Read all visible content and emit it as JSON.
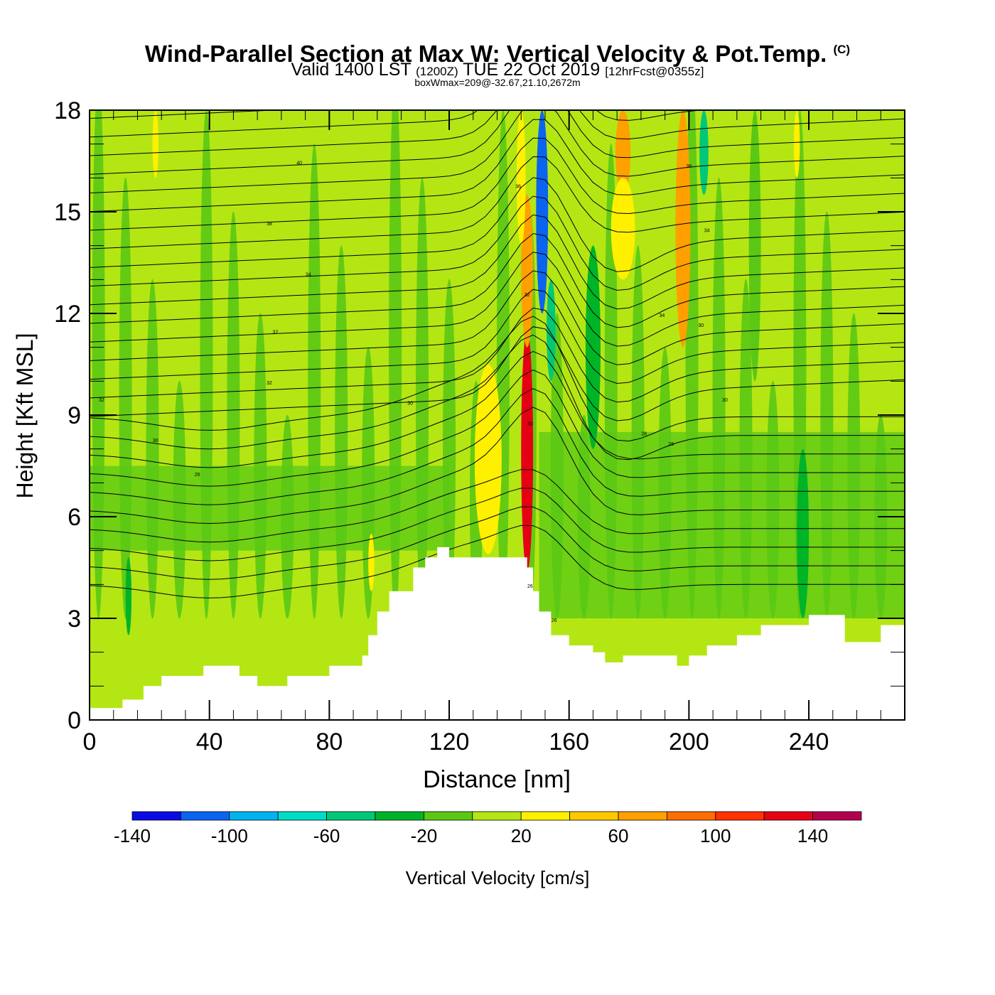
{
  "header": {
    "title": "Wind-Parallel Section at Max W: Vertical Velocity & Pot.Temp.",
    "copyright": "(C)",
    "valid_prefix": "Valid 1400 LST",
    "valid_utc": "(1200Z)",
    "valid_date": "TUE 22 Oct 2019",
    "forecast": "[12hrFcst@0355z]",
    "box_info": "boxWmax=209@-32.67,21.10,2672m"
  },
  "chart_data": {
    "type": "heatmap",
    "description_field": "vertical velocity cross-section with potential temperature contours",
    "xlabel": "Distance [nm]",
    "ylabel": "Height [Kft MSL]",
    "xlim": [
      0,
      272
    ],
    "ylim": [
      0,
      18
    ],
    "xticks": [
      0,
      40,
      80,
      120,
      160,
      200,
      240
    ],
    "yticks": [
      0,
      3,
      6,
      9,
      12,
      15,
      18
    ],
    "terrain": {
      "x": [
        0,
        10,
        11,
        18,
        24,
        38,
        50,
        56,
        66,
        80,
        91,
        93,
        96,
        100,
        104,
        108,
        112,
        116,
        120,
        132,
        142,
        146,
        148,
        150,
        154,
        160,
        168,
        172,
        178,
        190,
        196,
        200,
        206,
        216,
        224,
        232,
        240,
        248,
        252,
        256,
        264,
        272
      ],
      "height": [
        0.35,
        0.35,
        0.6,
        1.0,
        1.3,
        1.6,
        1.3,
        1.0,
        1.3,
        1.6,
        1.9,
        2.5,
        3.2,
        3.8,
        3.8,
        4.5,
        4.8,
        5.1,
        4.8,
        4.8,
        4.8,
        4.5,
        3.8,
        3.2,
        2.5,
        2.2,
        2.0,
        1.7,
        1.9,
        1.9,
        1.6,
        1.9,
        2.2,
        2.5,
        2.8,
        2.8,
        3.1,
        3.1,
        2.3,
        2.3,
        2.8,
        2.8
      ]
    },
    "velocity_features": [
      {
        "x": 133,
        "zmin": 4.9,
        "zmax": 10.5,
        "value": 30,
        "width": 9
      },
      {
        "x": 146,
        "zmin": 4.4,
        "zmax": 11.5,
        "value": 130,
        "width": 4
      },
      {
        "x": 146,
        "zmin": 11.0,
        "zmax": 15.5,
        "value": 60,
        "width": 4
      },
      {
        "x": 144,
        "zmin": 14.0,
        "zmax": 18,
        "value": 30,
        "width": 3
      },
      {
        "x": 151,
        "zmin": 12.0,
        "zmax": 18,
        "value": -120,
        "width": 4
      },
      {
        "x": 154,
        "zmin": 10.0,
        "zmax": 13.0,
        "value": -50,
        "width": 3
      },
      {
        "x": 168,
        "zmin": 8.0,
        "zmax": 14.0,
        "value": -25,
        "width": 5
      },
      {
        "x": 178,
        "zmin": 15.5,
        "zmax": 18,
        "value": 75,
        "width": 5
      },
      {
        "x": 178,
        "zmin": 13.0,
        "zmax": 16.0,
        "value": 30,
        "width": 8
      },
      {
        "x": 198,
        "zmin": 11.0,
        "zmax": 18,
        "value": 60,
        "width": 5
      },
      {
        "x": 205,
        "zmin": 15.5,
        "zmax": 18,
        "value": -60,
        "width": 3
      },
      {
        "x": 222,
        "zmin": 10.0,
        "zmax": 18,
        "value": -20,
        "width": 4
      },
      {
        "x": 238,
        "zmin": 3.0,
        "zmax": 8.0,
        "value": -25,
        "width": 4
      },
      {
        "x": 13,
        "zmin": 2.5,
        "zmax": 4.8,
        "value": -25,
        "width": 2
      },
      {
        "x": 94,
        "zmin": 3.8,
        "zmax": 5.5,
        "value": 35,
        "width": 2
      },
      {
        "x": 22,
        "zmin": 16.0,
        "zmax": 18,
        "value": 35,
        "width": 2
      },
      {
        "x": 236,
        "zmin": 16.0,
        "zmax": 18,
        "value": 35,
        "width": 2
      }
    ],
    "contour_labels": [
      "40",
      "38",
      "36",
      "34",
      "32",
      "30",
      "28",
      "26"
    ],
    "colorbar": {
      "label": "Vertical Velocity [cm/s]",
      "levels": [
        -140,
        -120,
        -100,
        -80,
        -60,
        -40,
        -20,
        0,
        20,
        40,
        60,
        80,
        100,
        120,
        140,
        160
      ],
      "tick_labels": [
        "-140",
        "-100",
        "-60",
        "-20",
        "20",
        "60",
        "100",
        "140"
      ],
      "colors": [
        "#0a0ae6",
        "#0a64f0",
        "#00b4f0",
        "#00dcc8",
        "#00c878",
        "#00b428",
        "#5ac814",
        "#b4e614",
        "#fff000",
        "#ffc800",
        "#ffa000",
        "#ff6e00",
        "#ff3200",
        "#e60014",
        "#b40050"
      ]
    }
  }
}
